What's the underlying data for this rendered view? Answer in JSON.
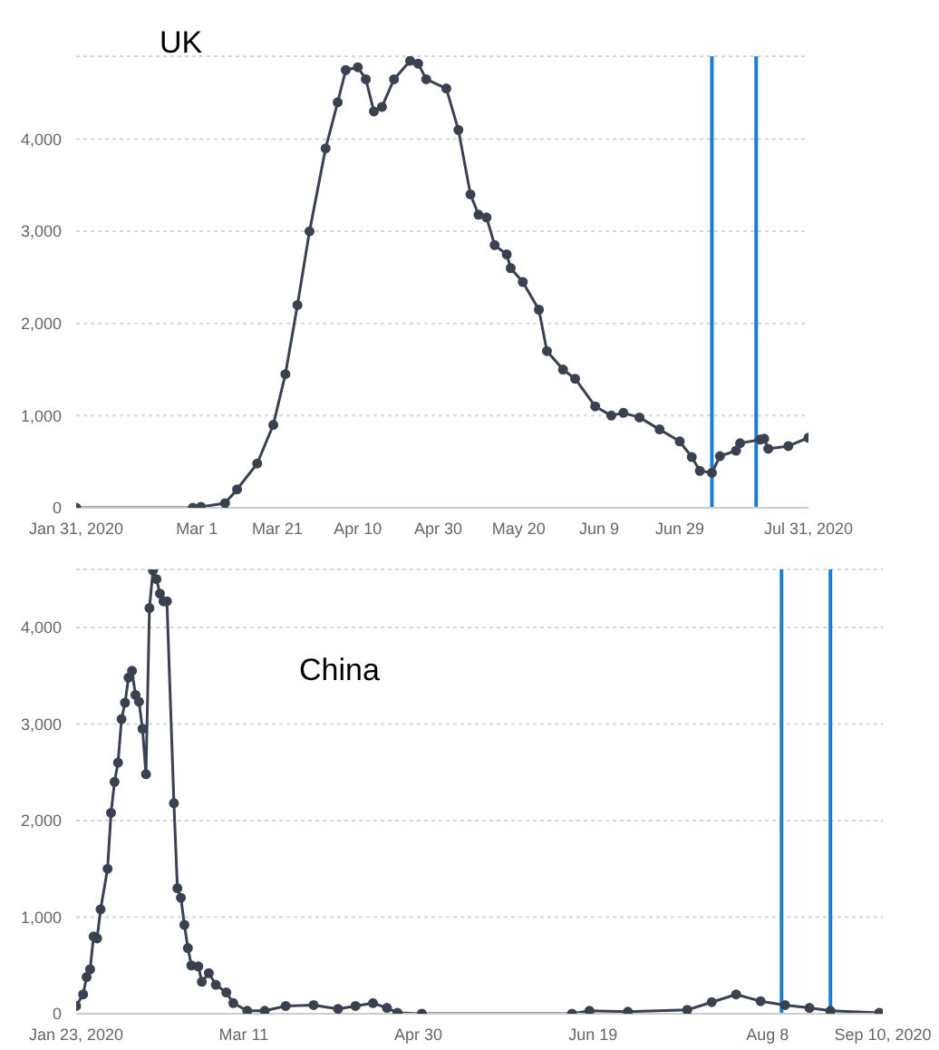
{
  "chart_data": [
    {
      "type": "line",
      "annotations": [
        "UK"
      ],
      "marker": "circle",
      "line_style": "solid",
      "grid": "y",
      "legend": false,
      "xlim": [
        "2020-01-31",
        "2020-07-31"
      ],
      "xticks": [
        {
          "value": "2020-01-31",
          "label": "Jan 31, 2020"
        },
        {
          "value": "2020-03-01",
          "label": "Mar 1"
        },
        {
          "value": "2020-03-21",
          "label": "Mar 21"
        },
        {
          "value": "2020-04-10",
          "label": "Apr 10"
        },
        {
          "value": "2020-04-30",
          "label": "Apr 30"
        },
        {
          "value": "2020-05-20",
          "label": "May 20"
        },
        {
          "value": "2020-06-09",
          "label": "Jun 9"
        },
        {
          "value": "2020-06-29",
          "label": "Jun 29"
        },
        {
          "value": "2020-07-31",
          "label": "Jul 31, 2020"
        }
      ],
      "ylim": [
        0,
        4900
      ],
      "yticks": [
        0,
        {
          "value": 1000,
          "label": "1,000"
        },
        {
          "value": 2000,
          "label": "2,000"
        },
        {
          "value": 3000,
          "label": "3,000"
        },
        {
          "value": 4000,
          "label": "4,000"
        }
      ],
      "ref_lines": [
        {
          "axis": "x",
          "value": "2020-07-07",
          "color": "#1a7fd4"
        },
        {
          "axis": "x",
          "value": "2020-07-18",
          "color": "#1a7fd4"
        }
      ],
      "x": [
        "2020-01-31",
        "2020-02-29",
        "2020-03-02",
        "2020-03-08",
        "2020-03-11",
        "2020-03-16",
        "2020-03-20",
        "2020-03-23",
        "2020-03-26",
        "2020-03-29",
        "2020-04-02",
        "2020-04-05",
        "2020-04-07",
        "2020-04-10",
        "2020-04-12",
        "2020-04-14",
        "2020-04-16",
        "2020-04-19",
        "2020-04-23",
        "2020-04-25",
        "2020-04-27",
        "2020-05-02",
        "2020-05-05",
        "2020-05-08",
        "2020-05-10",
        "2020-05-12",
        "2020-05-14",
        "2020-05-17",
        "2020-05-18",
        "2020-05-21",
        "2020-05-25",
        "2020-05-27",
        "2020-05-31",
        "2020-06-03",
        "2020-06-08",
        "2020-06-12",
        "2020-06-15",
        "2020-06-19",
        "2020-06-24",
        "2020-06-29",
        "2020-07-02",
        "2020-07-04",
        "2020-07-07",
        "2020-07-09",
        "2020-07-13",
        "2020-07-14",
        "2020-07-19",
        "2020-07-20",
        "2020-07-21",
        "2020-07-26",
        "2020-07-31"
      ],
      "series": [
        {
          "color": "#3a4150",
          "values": [
            0,
            0,
            10,
            50,
            200,
            480,
            900,
            1450,
            2200,
            3000,
            3900,
            4400,
            4750,
            4780,
            4650,
            4300,
            4350,
            4650,
            4850,
            4820,
            4650,
            4550,
            4100,
            3400,
            3180,
            3150,
            2850,
            2750,
            2600,
            2450,
            2150,
            1700,
            1500,
            1400,
            1100,
            1000,
            1030,
            980,
            850,
            720,
            550,
            400,
            380,
            560,
            620,
            700,
            740,
            750,
            640,
            670,
            760
          ]
        }
      ]
    },
    {
      "type": "line",
      "annotations": [
        "China"
      ],
      "marker": "circle",
      "line_style": "solid",
      "grid": "y",
      "legend": false,
      "xlim": [
        "2020-01-23",
        "2020-09-10"
      ],
      "xticks": [
        {
          "value": "2020-01-23",
          "label": "Jan 23, 2020"
        },
        {
          "value": "2020-03-11",
          "label": "Mar 11"
        },
        {
          "value": "2020-04-30",
          "label": "Apr 30"
        },
        {
          "value": "2020-06-19",
          "label": "Jun 19"
        },
        {
          "value": "2020-08-08",
          "label": "Aug 8"
        },
        {
          "value": "2020-09-10",
          "label": "Sep 10, 2020"
        }
      ],
      "ylim": [
        0,
        4600
      ],
      "yticks": [
        0,
        {
          "value": 1000,
          "label": "1,000"
        },
        {
          "value": 2000,
          "label": "2,000"
        },
        {
          "value": 3000,
          "label": "3,000"
        },
        {
          "value": 4000,
          "label": "4,000"
        }
      ],
      "ref_lines": [
        {
          "axis": "x",
          "value": "2020-08-12",
          "color": "#1a7fd4"
        },
        {
          "axis": "x",
          "value": "2020-08-26",
          "color": "#1a7fd4"
        }
      ],
      "x": [
        "2020-01-23",
        "2020-01-25",
        "2020-01-26",
        "2020-01-27",
        "2020-01-28",
        "2020-01-29",
        "2020-01-30",
        "2020-02-01",
        "2020-02-02",
        "2020-02-03",
        "2020-02-04",
        "2020-02-05",
        "2020-02-06",
        "2020-02-07",
        "2020-02-08",
        "2020-02-09",
        "2020-02-10",
        "2020-02-11",
        "2020-02-12",
        "2020-02-13",
        "2020-02-14",
        "2020-02-15",
        "2020-02-16",
        "2020-02-17",
        "2020-02-18",
        "2020-02-20",
        "2020-02-21",
        "2020-02-22",
        "2020-02-23",
        "2020-02-24",
        "2020-02-25",
        "2020-02-27",
        "2020-02-28",
        "2020-03-01",
        "2020-03-03",
        "2020-03-06",
        "2020-03-08",
        "2020-03-12",
        "2020-03-17",
        "2020-03-23",
        "2020-03-31",
        "2020-04-07",
        "2020-04-12",
        "2020-04-17",
        "2020-04-21",
        "2020-04-24",
        "2020-05-01",
        "2020-06-13",
        "2020-06-18",
        "2020-06-29",
        "2020-07-16",
        "2020-07-23",
        "2020-07-30",
        "2020-08-06",
        "2020-08-13",
        "2020-08-20",
        "2020-08-26",
        "2020-09-09"
      ],
      "series": [
        {
          "color": "#3a4150",
          "values": [
            80,
            200,
            380,
            460,
            800,
            780,
            1080,
            1500,
            2080,
            2400,
            2600,
            3050,
            3220,
            3480,
            3550,
            3300,
            3230,
            2950,
            2480,
            4200,
            4590,
            4500,
            4350,
            4270,
            4270,
            2180,
            1300,
            1200,
            920,
            680,
            500,
            490,
            330,
            420,
            300,
            220,
            110,
            30,
            30,
            80,
            90,
            50,
            80,
            110,
            60,
            10,
            0,
            0,
            30,
            20,
            40,
            120,
            200,
            130,
            90,
            60,
            30,
            10
          ]
        }
      ]
    }
  ]
}
